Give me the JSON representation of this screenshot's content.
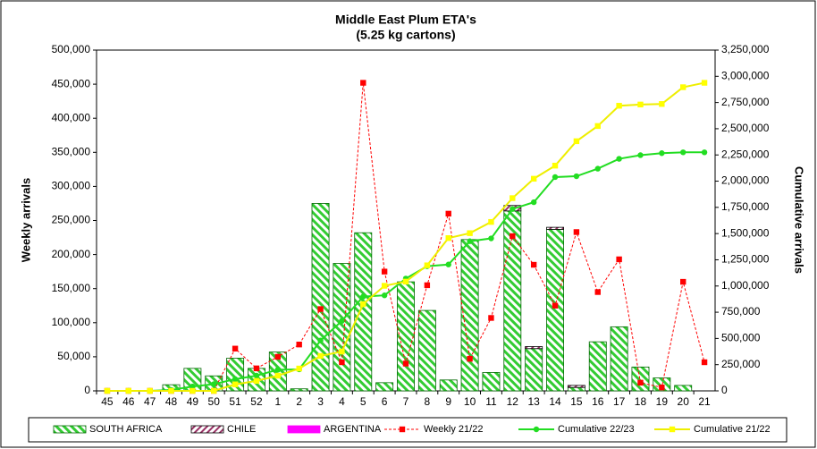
{
  "chart_data": {
    "type": "bar_line",
    "title": "Middle East Plum ETA's",
    "subtitle": "(5.25 kg cartons)",
    "y_label": "Weekly arrivals",
    "y2_label": "Cumulative arrivals",
    "categories": [
      "45",
      "46",
      "47",
      "48",
      "49",
      "50",
      "51",
      "52",
      "1",
      "2",
      "3",
      "4",
      "5",
      "6",
      "7",
      "8",
      "9",
      "10",
      "11",
      "12",
      "13",
      "14",
      "15",
      "16",
      "17",
      "18",
      "19",
      "20",
      "21"
    ],
    "series": [
      {
        "name": "SOUTH AFRICA",
        "kind": "bar",
        "color": "#33cc33",
        "values": [
          0,
          0,
          0,
          9000,
          33000,
          22000,
          48000,
          33000,
          57000,
          3000,
          275000,
          187000,
          232000,
          12000,
          160000,
          118000,
          16000,
          222000,
          27000,
          264000,
          62000,
          237000,
          5000,
          72000,
          94000,
          35000,
          19000,
          8000,
          0
        ]
      },
      {
        "name": "CHILE",
        "kind": "bar",
        "color": "#993366",
        "values": [
          0,
          0,
          0,
          0,
          0,
          0,
          0,
          0,
          0,
          0,
          0,
          0,
          0,
          0,
          0,
          0,
          0,
          0,
          0,
          8000,
          3000,
          3000,
          3000,
          0,
          0,
          0,
          0,
          0,
          0
        ]
      },
      {
        "name": "ARGENTINA",
        "kind": "bar",
        "color": "#ff00ff",
        "values": [
          0,
          0,
          0,
          0,
          0,
          0,
          0,
          0,
          0,
          0,
          0,
          0,
          0,
          0,
          0,
          0,
          0,
          0,
          0,
          0,
          0,
          0,
          0,
          0,
          0,
          0,
          0,
          0,
          0
        ]
      },
      {
        "name": "Weekly 21/22",
        "kind": "line",
        "dashed": true,
        "marker": "square",
        "color": "#ff0000",
        "values": [
          0,
          0,
          0,
          0,
          0,
          0,
          62000,
          33000,
          50000,
          68000,
          120000,
          42000,
          452000,
          175000,
          40000,
          155000,
          260000,
          47000,
          107000,
          227000,
          185000,
          125000,
          233000,
          145000,
          193000,
          12000,
          5000,
          160000,
          42000
        ]
      },
      {
        "name": "Cumulative 22/23",
        "kind": "line",
        "axis": "y2",
        "marker": "circle",
        "color": "#22dd22",
        "values": [
          0,
          0,
          0,
          9000,
          42000,
          64000,
          112000,
          145000,
          202000,
          205000,
          480000,
          667000,
          899000,
          911000,
          1071000,
          1189000,
          1205000,
          1427000,
          1454000,
          1734000,
          1799000,
          2039000,
          2047000,
          2119000,
          2213000,
          2248000,
          2267000,
          2275000,
          2275000
        ]
      },
      {
        "name": "Cumulative 21/22",
        "kind": "line",
        "axis": "y2",
        "marker": "square",
        "color": "#ffff00",
        "values": [
          0,
          0,
          0,
          0,
          0,
          0,
          62000,
          95000,
          145000,
          213000,
          333000,
          375000,
          827000,
          1002000,
          1042000,
          1197000,
          1457000,
          1504000,
          1611000,
          1838000,
          2023000,
          2148000,
          2381000,
          2526000,
          2719000,
          2731000,
          2736000,
          2896000,
          2938000
        ]
      }
    ],
    "ylim": [
      0,
      500000
    ],
    "yticks": [
      0,
      {
        "value": 50000,
        "label": "50,000"
      },
      {
        "value": 100000,
        "label": "100,000"
      },
      {
        "value": 150000,
        "label": "150,000"
      },
      {
        "value": 200000,
        "label": "200,000"
      },
      {
        "value": 250000,
        "label": "250,000"
      },
      {
        "value": 300000,
        "label": "300,000"
      },
      {
        "value": 350000,
        "label": "350,000"
      },
      {
        "value": 400000,
        "label": "400,000"
      },
      {
        "value": 450000,
        "label": "450,000"
      },
      {
        "value": 500000,
        "label": "500,000"
      }
    ],
    "y2lim": [
      0,
      3250000
    ],
    "y2ticks": [
      0,
      {
        "value": 250000,
        "label": "250,000"
      },
      {
        "value": 500000,
        "label": "500,000"
      },
      {
        "value": 750000,
        "label": "750,000"
      },
      {
        "value": 1000000,
        "label": "1,000,000"
      },
      {
        "value": 1250000,
        "label": "1,250,000"
      },
      {
        "value": 1500000,
        "label": "1,500,000"
      },
      {
        "value": 1750000,
        "label": "1,750,000"
      },
      {
        "value": 2000000,
        "label": "2,000,000"
      },
      {
        "value": 2250000,
        "label": "2,250,000"
      },
      {
        "value": 2500000,
        "label": "2,500,000"
      },
      {
        "value": 2750000,
        "label": "2,750,000"
      },
      {
        "value": 3000000,
        "label": "3,000,000"
      },
      {
        "value": 3250000,
        "label": "3,250,000"
      }
    ],
    "stacked": true,
    "legend": "bottom"
  }
}
